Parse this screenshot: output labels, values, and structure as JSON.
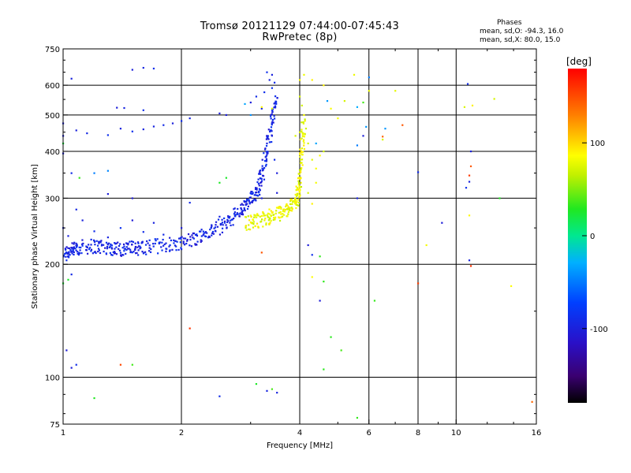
{
  "chart_data": {
    "type": "scatter",
    "title": "Tromsø 20121129 07:44:00-07:45:43",
    "subtitle": "RwPretec (8p)",
    "xlabel": "Frequency [MHz]",
    "ylabel": "Stationary phase Virtual Height [km]",
    "x_scale": "log",
    "y_scale": "log",
    "xlim": [
      1,
      16
    ],
    "ylim": [
      75,
      750
    ],
    "x_ticks": [
      1,
      2,
      4,
      6,
      8,
      10,
      16
    ],
    "x_tick_labels": [
      "1",
      "2",
      "4",
      "6",
      "8",
      "10",
      "16"
    ],
    "y_ticks": [
      75,
      100,
      200,
      300,
      400,
      500,
      600,
      750
    ],
    "y_tick_labels": [
      "75",
      "100",
      "200",
      "300",
      "400",
      "500",
      "600",
      "750"
    ],
    "grid": true,
    "phase_legend": {
      "title": "Phases",
      "line_o": "mean, sd,O: -94.3, 16.0",
      "line_x": "mean, sd,X:  80.0, 15.0"
    },
    "colorbar": {
      "label": "[deg]",
      "ticks": [
        100,
        0,
        -100
      ],
      "tick_labels": [
        "100",
        "0",
        "-100"
      ],
      "range": [
        -180,
        180
      ]
    },
    "series": [
      {
        "phase_deg": -94,
        "trace_points": [
          [
            1.0,
            215
          ],
          [
            1.05,
            218
          ],
          [
            1.1,
            222
          ],
          [
            1.2,
            224
          ],
          [
            1.3,
            222
          ],
          [
            1.4,
            220
          ],
          [
            1.5,
            221
          ],
          [
            1.6,
            222
          ],
          [
            1.8,
            225
          ],
          [
            2.0,
            229
          ],
          [
            2.2,
            236
          ],
          [
            2.4,
            246
          ],
          [
            2.6,
            258
          ],
          [
            2.8,
            275
          ],
          [
            2.95,
            290
          ],
          [
            3.1,
            310
          ],
          [
            3.2,
            345
          ],
          [
            3.3,
            400
          ],
          [
            3.4,
            480
          ],
          [
            3.5,
            560
          ]
        ],
        "points": [
          [
            1.0,
            250
          ],
          [
            1.02,
            205
          ],
          [
            1.03,
            238
          ],
          [
            1.05,
            188
          ],
          [
            1.08,
            280
          ],
          [
            1.12,
            262
          ],
          [
            1.2,
            245
          ],
          [
            1.3,
            236
          ],
          [
            1.4,
            250
          ],
          [
            1.5,
            262
          ],
          [
            1.6,
            244
          ],
          [
            1.7,
            258
          ],
          [
            1.8,
            240
          ],
          [
            2.0,
            250
          ],
          [
            2.1,
            292
          ],
          [
            2.5,
            268
          ],
          [
            1.0,
            440
          ],
          [
            1.0,
            475
          ],
          [
            1.0,
            395
          ],
          [
            1.05,
            350
          ],
          [
            1.08,
            455
          ],
          [
            1.15,
            447
          ],
          [
            1.3,
            442
          ],
          [
            1.4,
            460
          ],
          [
            1.5,
            452
          ],
          [
            1.6,
            458
          ],
          [
            1.7,
            466
          ],
          [
            1.8,
            470
          ],
          [
            1.9,
            475
          ],
          [
            2.0,
            482
          ],
          [
            2.1,
            490
          ],
          [
            2.5,
            505
          ],
          [
            2.6,
            500
          ],
          [
            1.37,
            523
          ],
          [
            1.43,
            522
          ],
          [
            1.6,
            515
          ],
          [
            1.5,
            660
          ],
          [
            1.6,
            668
          ],
          [
            1.7,
            665
          ],
          [
            1.05,
            625
          ],
          [
            1.3,
            308
          ],
          [
            1.5,
            300
          ],
          [
            3.3,
            650
          ],
          [
            3.35,
            620
          ],
          [
            3.4,
            590
          ],
          [
            3.25,
            575
          ],
          [
            3.4,
            640
          ],
          [
            3.45,
            610
          ],
          [
            3.0,
            540
          ],
          [
            3.1,
            560
          ],
          [
            3.2,
            520
          ],
          [
            3.3,
            420
          ],
          [
            3.4,
            440
          ],
          [
            3.45,
            380
          ],
          [
            3.5,
            350
          ],
          [
            3.5,
            310
          ],
          [
            3.2,
            300
          ],
          [
            1.02,
            118
          ],
          [
            1.05,
            106
          ],
          [
            1.08,
            108
          ],
          [
            2.5,
            89
          ],
          [
            3.3,
            92
          ],
          [
            3.5,
            91
          ],
          [
            4.2,
            225
          ],
          [
            4.3,
            212
          ],
          [
            5.6,
            300
          ],
          [
            5.8,
            440
          ],
          [
            8.0,
            352
          ],
          [
            9.2,
            258
          ],
          [
            10.6,
            320
          ],
          [
            10.8,
            332
          ],
          [
            10.9,
            400
          ],
          [
            10.7,
            605
          ],
          [
            10.8,
            205
          ],
          [
            4.5,
            160
          ]
        ]
      },
      {
        "phase_deg": 80,
        "trace_points": [
          [
            2.9,
            258
          ],
          [
            3.1,
            261
          ],
          [
            3.3,
            266
          ],
          [
            3.5,
            272
          ],
          [
            3.7,
            280
          ],
          [
            3.85,
            290
          ],
          [
            3.95,
            300
          ],
          [
            4.0,
            330
          ],
          [
            4.05,
            400
          ],
          [
            4.1,
            480
          ]
        ],
        "points": [
          [
            4.0,
            620
          ],
          [
            4.0,
            560
          ],
          [
            4.05,
            530
          ],
          [
            4.1,
            500
          ],
          [
            3.9,
            440
          ],
          [
            4.0,
            450
          ],
          [
            4.2,
            420
          ],
          [
            4.3,
            380
          ],
          [
            4.4,
            360
          ],
          [
            4.5,
            390
          ],
          [
            4.6,
            400
          ],
          [
            4.4,
            330
          ],
          [
            4.2,
            310
          ],
          [
            4.3,
            290
          ],
          [
            4.1,
            640
          ],
          [
            3.2,
            525
          ],
          [
            3.4,
            520
          ],
          [
            4.3,
            620
          ],
          [
            4.6,
            600
          ],
          [
            4.8,
            520
          ],
          [
            5.0,
            490
          ],
          [
            5.5,
            640
          ],
          [
            6.0,
            580
          ],
          [
            6.5,
            430
          ],
          [
            7.0,
            580
          ],
          [
            10.5,
            525
          ],
          [
            11.0,
            530
          ],
          [
            12.5,
            552
          ],
          [
            5.2,
            545
          ],
          [
            8.4,
            225
          ],
          [
            13.8,
            175
          ],
          [
            10.8,
            270
          ],
          [
            4.3,
            185
          ]
        ]
      },
      {
        "phase_deg": 30,
        "points": [
          [
            1.1,
            340
          ],
          [
            1.0,
            420
          ],
          [
            2.5,
            330
          ],
          [
            2.6,
            340
          ],
          [
            5.8,
            540
          ],
          [
            4.5,
            210
          ],
          [
            4.6,
            180
          ],
          [
            4.8,
            128
          ],
          [
            5.1,
            118
          ],
          [
            6.2,
            160
          ],
          [
            3.1,
            96
          ],
          [
            3.4,
            93
          ],
          [
            5.6,
            78
          ],
          [
            1.5,
            108
          ],
          [
            1.2,
            88
          ],
          [
            12.9,
            300
          ],
          [
            1.0,
            178
          ],
          [
            1.03,
            182
          ],
          [
            4.6,
            105
          ]
        ]
      },
      {
        "phase_deg": -40,
        "points": [
          [
            5.6,
            415
          ],
          [
            5.6,
            525
          ],
          [
            4.7,
            545
          ],
          [
            5.9,
            465
          ],
          [
            6.6,
            460
          ],
          [
            6.0,
            630
          ],
          [
            4.4,
            420
          ],
          [
            3.0,
            500
          ],
          [
            2.9,
            535
          ],
          [
            1.3,
            355
          ],
          [
            1.2,
            350
          ]
        ]
      },
      {
        "phase_deg": 150,
        "points": [
          [
            2.1,
            135
          ],
          [
            1.4,
            108
          ],
          [
            3.2,
            215
          ],
          [
            8.0,
            178
          ],
          [
            10.9,
            198
          ],
          [
            15.6,
            86
          ],
          [
            7.3,
            470
          ],
          [
            10.9,
            365
          ],
          [
            10.8,
            345
          ],
          [
            6.5,
            438
          ]
        ]
      }
    ]
  }
}
